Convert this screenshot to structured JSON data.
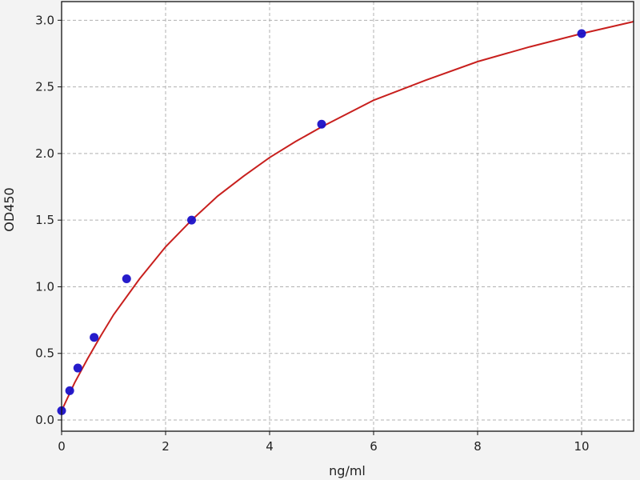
{
  "chart_data": {
    "type": "scatter",
    "title": "",
    "xlabel": "ng/ml",
    "ylabel": "OD450",
    "xlim": [
      0,
      11
    ],
    "ylim": [
      -0.084,
      3.14
    ],
    "xticks": [
      "0",
      "2",
      "4",
      "6",
      "8",
      "10"
    ],
    "yticks": [
      "0.0",
      "0.5",
      "1.0",
      "1.5",
      "2.0",
      "2.5",
      "3.0"
    ],
    "grid": true,
    "points": {
      "x": [
        0,
        0.156,
        0.312,
        0.625,
        1.25,
        2.5,
        5,
        10
      ],
      "y": [
        0.07,
        0.22,
        0.39,
        0.62,
        1.06,
        1.5,
        2.22,
        2.9
      ],
      "color": "#1a10c8"
    },
    "fit_curve": {
      "x": [
        0,
        0.25,
        0.5,
        0.75,
        1,
        1.5,
        2,
        2.5,
        3,
        3.5,
        4,
        4.5,
        5,
        6,
        7,
        8,
        9,
        10,
        11
      ],
      "y": [
        0.07,
        0.28,
        0.46,
        0.63,
        0.79,
        1.06,
        1.3,
        1.5,
        1.68,
        1.83,
        1.97,
        2.09,
        2.2,
        2.4,
        2.55,
        2.69,
        2.8,
        2.9,
        2.99
      ],
      "color": "#c8201e"
    }
  }
}
